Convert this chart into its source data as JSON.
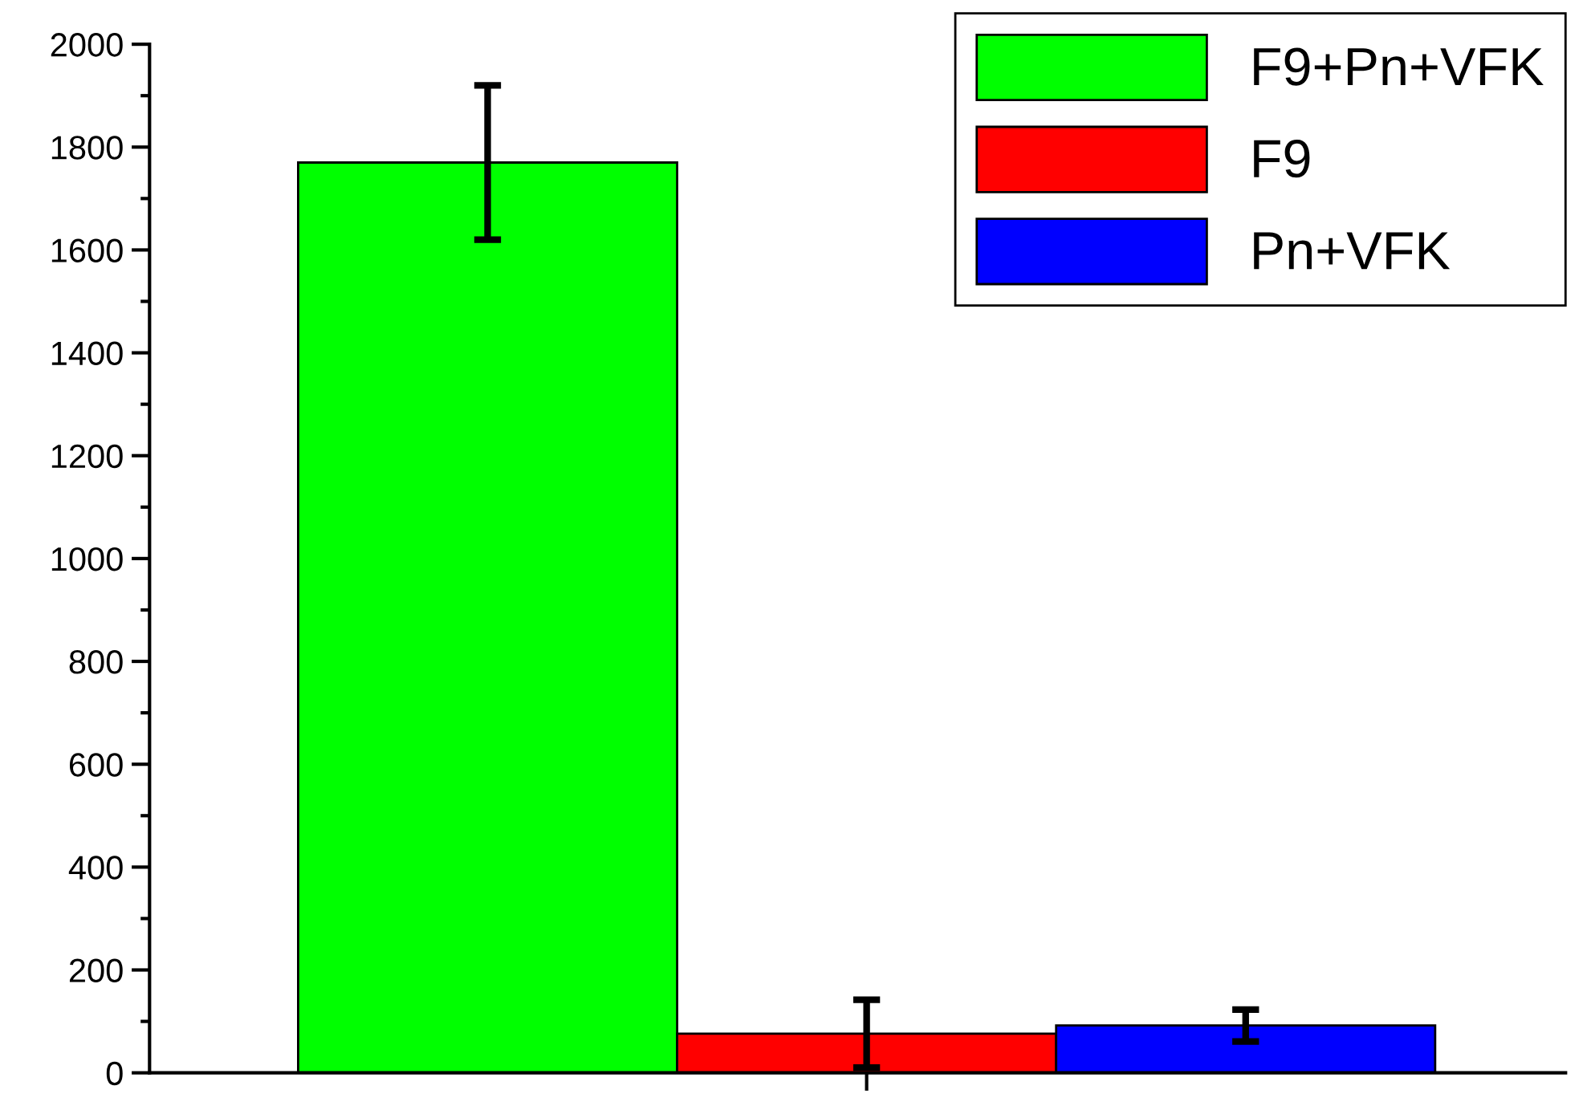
{
  "chart_data": {
    "type": "bar",
    "categories": [
      null
    ],
    "series": [
      {
        "name": "F9+Pn+VFK",
        "color": "#00ff00",
        "values": [
          1770
        ],
        "errors": [
          150
        ]
      },
      {
        "name": "F9",
        "color": "#ff0000",
        "values": [
          76
        ],
        "errors": [
          66
        ]
      },
      {
        "name": "Pn+VFK",
        "color": "#0000ff",
        "values": [
          92
        ],
        "errors": [
          31
        ]
      }
    ],
    "ylim": [
      0,
      2000
    ],
    "yticks": [
      0,
      200,
      400,
      600,
      800,
      1000,
      1200,
      1400,
      1600,
      1800,
      2000
    ],
    "grid": false,
    "legend": "top right"
  }
}
